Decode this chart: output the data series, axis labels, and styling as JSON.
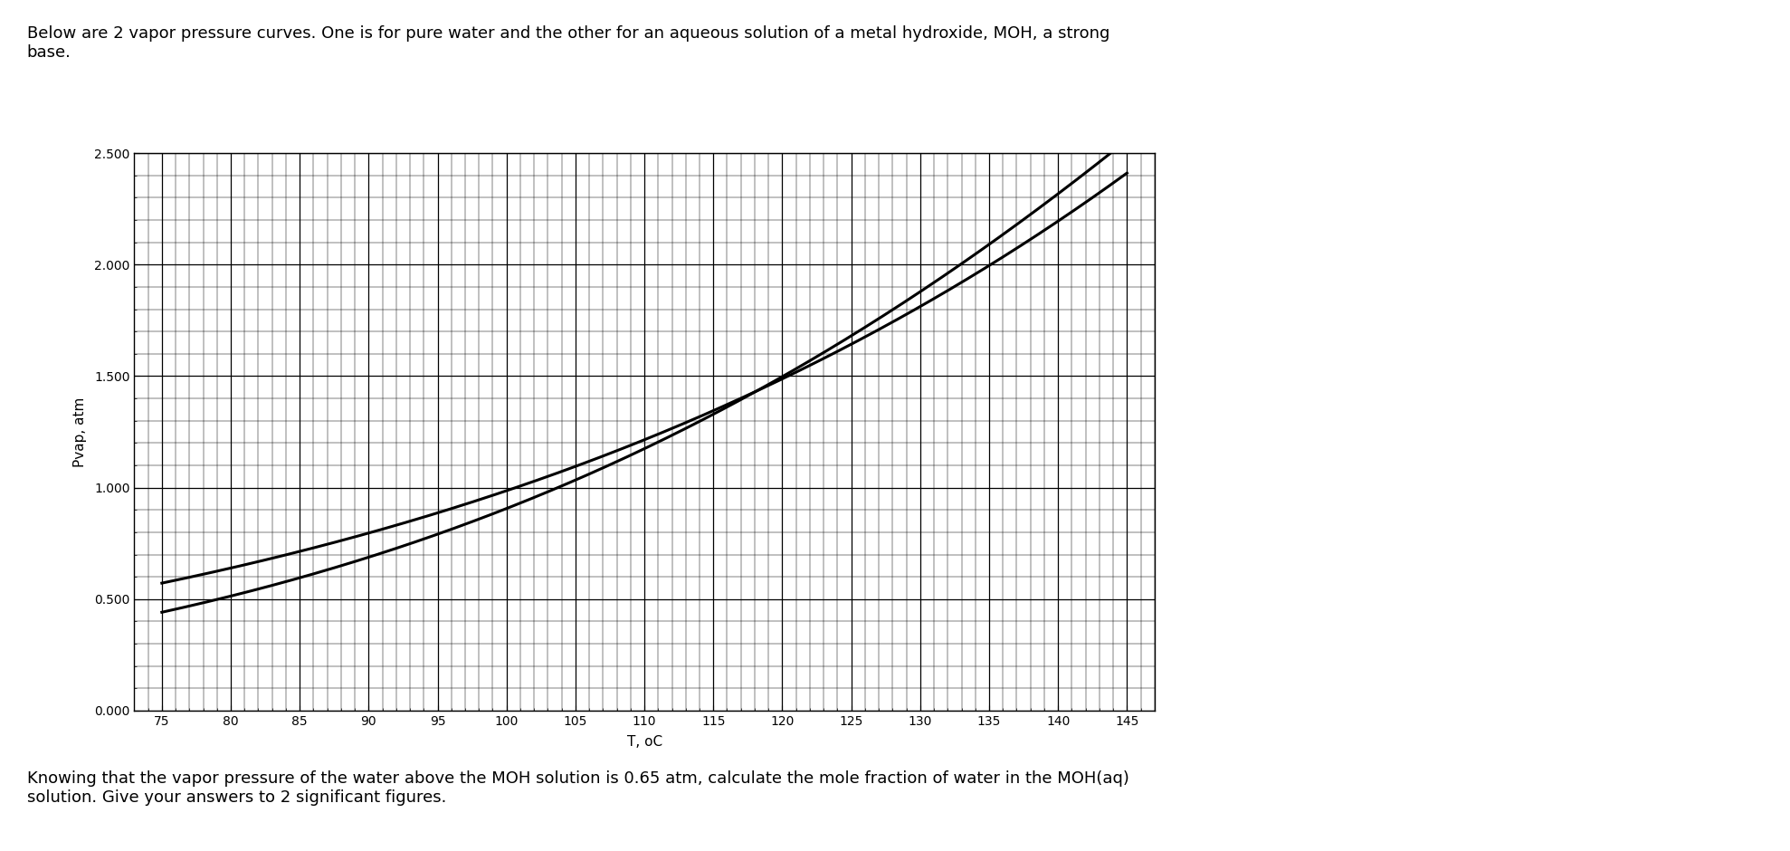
{
  "title_text": "Below are 2 vapor pressure curves. One is for pure water and the other for an aqueous solution of a metal hydroxide, MOH, a strong\nbase.",
  "footer_text": "Knowing that the vapor pressure of the water above the MOH solution is 0.65 atm, calculate the mole fraction of water in the MOH(aq)\nsolution. Give your answers to 2 significant figures.",
  "xlabel": "T, oC",
  "ylabel": "Pvap, atm",
  "xlim": [
    73,
    147
  ],
  "ylim": [
    0.0,
    2.5
  ],
  "xticks": [
    75,
    80,
    85,
    90,
    95,
    100,
    105,
    110,
    115,
    120,
    125,
    130,
    135,
    140,
    145
  ],
  "yticks": [
    0.0,
    0.5,
    1.0,
    1.5,
    2.0,
    2.5
  ],
  "ytick_labels": [
    "0.000",
    "0.500",
    "1.000",
    "1.500",
    "2.000",
    "2.500"
  ],
  "curve_water_pts": [
    [
      75,
      0.47
    ],
    [
      80,
      0.5
    ],
    [
      85,
      0.58
    ],
    [
      90,
      0.67
    ],
    [
      95,
      0.775
    ],
    [
      100,
      0.9
    ],
    [
      105,
      1.035
    ],
    [
      110,
      1.185
    ],
    [
      115,
      1.345
    ],
    [
      120,
      1.52
    ],
    [
      125,
      1.71
    ],
    [
      130,
      1.91
    ],
    [
      135,
      2.1
    ],
    [
      140,
      2.31
    ],
    [
      145,
      2.49
    ]
  ],
  "curve_moh_pts": [
    [
      75,
      0.6
    ],
    [
      80,
      0.63
    ],
    [
      85,
      0.7
    ],
    [
      90,
      0.78
    ],
    [
      95,
      0.87
    ],
    [
      100,
      0.975
    ],
    [
      105,
      1.09
    ],
    [
      110,
      1.22
    ],
    [
      115,
      1.36
    ],
    [
      120,
      1.51
    ],
    [
      125,
      1.675
    ],
    [
      130,
      1.845
    ],
    [
      135,
      2.01
    ],
    [
      140,
      2.18
    ],
    [
      145,
      2.35
    ]
  ],
  "line_color": "#000000",
  "grid_major_color": "#000000",
  "grid_minor_color": "#606060",
  "bg_color": "#ffffff",
  "plot_bg_color": "#ffffff",
  "font_size_title": 13,
  "font_size_axis": 11,
  "font_size_tick": 10,
  "font_size_footer": 13,
  "line_width": 2.2,
  "border_color": "#808080"
}
